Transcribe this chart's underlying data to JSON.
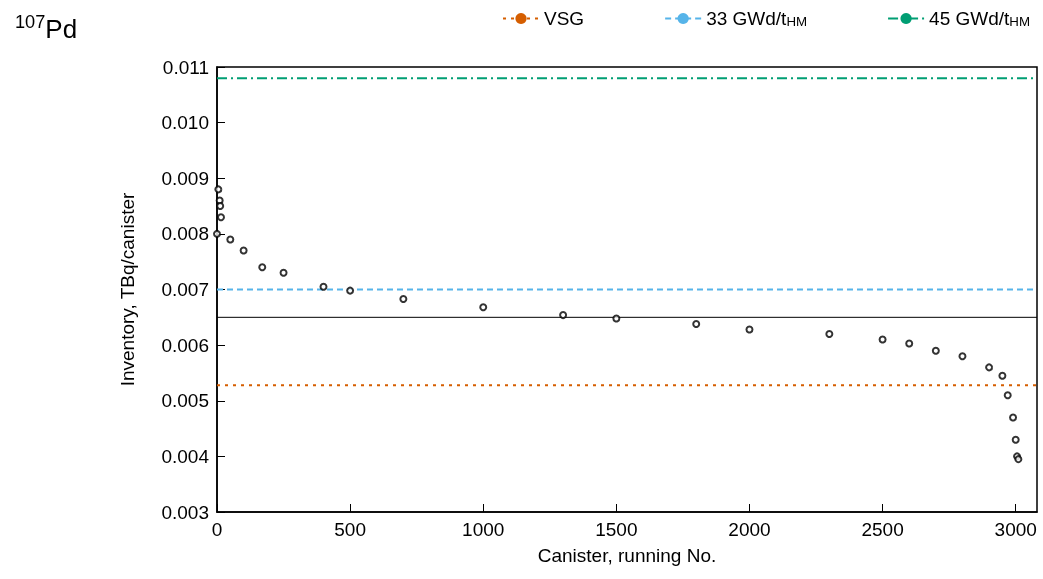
{
  "chart_data": {
    "type": "scatter",
    "title": "$^{107}$Pd",
    "xlabel": "Canister, running No.",
    "ylabel": "Inventory, TBq/canister",
    "x": [
      0,
      5,
      10,
      12,
      15,
      50,
      100,
      170,
      250,
      400,
      500,
      700,
      1000,
      1300,
      1500,
      1800,
      2000,
      2300,
      2500,
      2600,
      2700,
      2800,
      2900,
      2950,
      2970,
      2990,
      3000,
      3005,
      3010
    ],
    "values": [
      0.008,
      0.0088,
      0.0086,
      0.0085,
      0.0083,
      0.0079,
      0.0077,
      0.0074,
      0.0073,
      0.00705,
      0.00698,
      0.00683,
      0.00668,
      0.00654,
      0.00648,
      0.00638,
      0.00628,
      0.0062,
      0.0061,
      0.00603,
      0.0059,
      0.0058,
      0.0056,
      0.00545,
      0.0051,
      0.0047,
      0.0043,
      0.004,
      0.00395
    ],
    "color": "#000000",
    "marker": "circle",
    "xlim": [
      0,
      3080
    ],
    "xticks": [
      0,
      500,
      1000,
      1500,
      2000,
      2500,
      3000
    ],
    "ylim": [
      0.003,
      0.011
    ],
    "yticks": [
      0.003,
      0.004,
      0.005,
      0.006,
      0.007,
      0.008,
      0.009,
      {
        "value": 0.01,
        "label": "0.010"
      },
      0.011
    ],
    "ref_lines": [
      {
        "axis": "y",
        "value": 0.00528,
        "label": "VSG",
        "color": "#d55e00",
        "line_style": "dotted"
      },
      {
        "axis": "y",
        "value": 0.007,
        "label": "33 GWd/t$_{HM}$",
        "color": "#56b4e9",
        "line_style": "dashed"
      },
      {
        "axis": "y",
        "value": 0.0108,
        "label": "45 GWd/t$_{HM}$",
        "color": "#009e73",
        "line_style": "dashdot"
      },
      {
        "axis": "y",
        "value": 0.0065,
        "label": null,
        "color": "#000000",
        "line_style": "solid"
      }
    ],
    "grid": false,
    "legend": "top"
  }
}
